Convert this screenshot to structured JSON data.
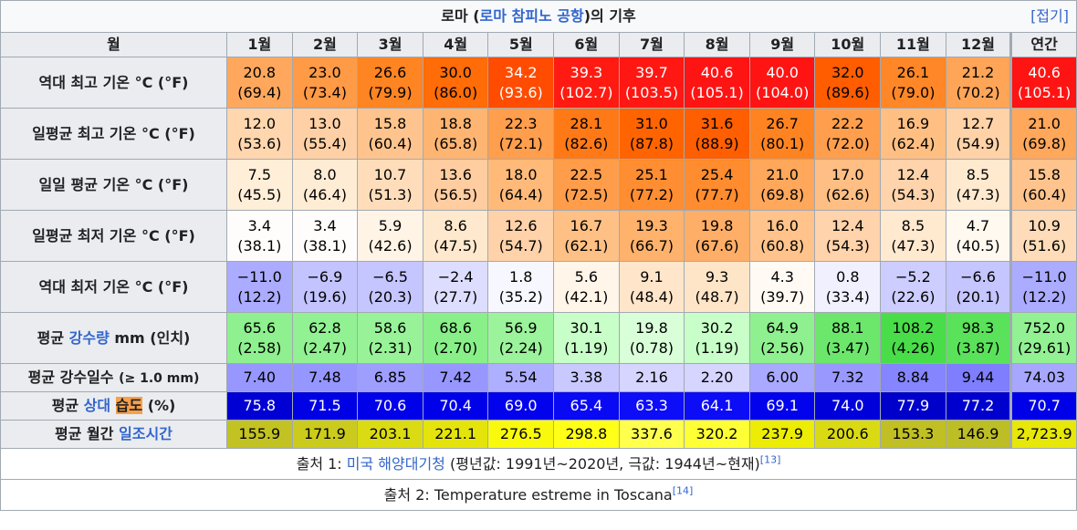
{
  "title": {
    "before": "로마 (",
    "link": "로마 참피노 공항",
    "after": ")의 기후",
    "toggle": "[접기]"
  },
  "header": [
    "월",
    "1월",
    "2월",
    "3월",
    "4월",
    "5월",
    "6월",
    "7월",
    "8월",
    "9월",
    "10월",
    "11월",
    "12월",
    "연간"
  ],
  "rows": [
    {
      "label": [
        {
          "text": "역대 최고 기온 °C (°F)"
        }
      ],
      "scale": "temp",
      "cells": [
        [
          "20.8",
          "(69.4)"
        ],
        [
          "23.0",
          "(73.4)"
        ],
        [
          "26.6",
          "(79.9)"
        ],
        [
          "30.0",
          "(86.0)"
        ],
        [
          "34.2",
          "(93.6)"
        ],
        [
          "39.3",
          "(102.7)"
        ],
        [
          "39.7",
          "(103.5)"
        ],
        [
          "40.6",
          "(105.1)"
        ],
        [
          "40.0",
          "(104.0)"
        ],
        [
          "32.0",
          "(89.6)"
        ],
        [
          "26.1",
          "(79.0)"
        ],
        [
          "21.2",
          "(70.2)"
        ],
        [
          "40.6",
          "(105.1)"
        ]
      ]
    },
    {
      "label": [
        {
          "text": "일평균 최고 기온 °C (°F)"
        }
      ],
      "scale": "temp",
      "cells": [
        [
          "12.0",
          "(53.6)"
        ],
        [
          "13.0",
          "(55.4)"
        ],
        [
          "15.8",
          "(60.4)"
        ],
        [
          "18.8",
          "(65.8)"
        ],
        [
          "22.3",
          "(72.1)"
        ],
        [
          "28.1",
          "(82.6)"
        ],
        [
          "31.0",
          "(87.8)"
        ],
        [
          "31.6",
          "(88.9)"
        ],
        [
          "26.7",
          "(80.1)"
        ],
        [
          "22.2",
          "(72.0)"
        ],
        [
          "16.9",
          "(62.4)"
        ],
        [
          "12.7",
          "(54.9)"
        ],
        [
          "21.0",
          "(69.8)"
        ]
      ]
    },
    {
      "label": [
        {
          "text": "일일 평균 기온 °C (°F)"
        }
      ],
      "scale": "temp",
      "cells": [
        [
          "7.5",
          "(45.5)"
        ],
        [
          "8.0",
          "(46.4)"
        ],
        [
          "10.7",
          "(51.3)"
        ],
        [
          "13.6",
          "(56.5)"
        ],
        [
          "18.0",
          "(64.4)"
        ],
        [
          "22.5",
          "(72.5)"
        ],
        [
          "25.1",
          "(77.2)"
        ],
        [
          "25.4",
          "(77.7)"
        ],
        [
          "21.0",
          "(69.8)"
        ],
        [
          "17.0",
          "(62.6)"
        ],
        [
          "12.4",
          "(54.3)"
        ],
        [
          "8.5",
          "(47.3)"
        ],
        [
          "15.8",
          "(60.4)"
        ]
      ]
    },
    {
      "label": [
        {
          "text": "일평균 최저 기온 °C (°F)"
        }
      ],
      "scale": "temp",
      "cells": [
        [
          "3.4",
          "(38.1)"
        ],
        [
          "3.4",
          "(38.1)"
        ],
        [
          "5.9",
          "(42.6)"
        ],
        [
          "8.6",
          "(47.5)"
        ],
        [
          "12.6",
          "(54.7)"
        ],
        [
          "16.7",
          "(62.1)"
        ],
        [
          "19.3",
          "(66.7)"
        ],
        [
          "19.8",
          "(67.6)"
        ],
        [
          "16.0",
          "(60.8)"
        ],
        [
          "12.4",
          "(54.3)"
        ],
        [
          "8.5",
          "(47.3)"
        ],
        [
          "4.7",
          "(40.5)"
        ],
        [
          "10.9",
          "(51.6)"
        ]
      ]
    },
    {
      "label": [
        {
          "text": "역대 최저 기온 °C (°F)"
        }
      ],
      "scale": "temp",
      "cells": [
        [
          "−11.0",
          "(12.2)"
        ],
        [
          "−6.9",
          "(19.6)"
        ],
        [
          "−6.5",
          "(20.3)"
        ],
        [
          "−2.4",
          "(27.7)"
        ],
        [
          "1.8",
          "(35.2)"
        ],
        [
          "5.6",
          "(42.1)"
        ],
        [
          "9.1",
          "(48.4)"
        ],
        [
          "9.3",
          "(48.7)"
        ],
        [
          "4.3",
          "(39.7)"
        ],
        [
          "0.8",
          "(33.4)"
        ],
        [
          "−5.2",
          "(22.6)"
        ],
        [
          "−6.6",
          "(20.1)"
        ],
        [
          "−11.0",
          "(12.2)"
        ]
      ]
    },
    {
      "label": [
        {
          "text": "평균 "
        },
        {
          "text": "강수량",
          "style": "link"
        },
        {
          "text": " mm (인치)"
        }
      ],
      "scale": "precip",
      "cells": [
        [
          "65.6",
          "(2.58)"
        ],
        [
          "62.8",
          "(2.47)"
        ],
        [
          "58.6",
          "(2.31)"
        ],
        [
          "68.6",
          "(2.70)"
        ],
        [
          "56.9",
          "(2.24)"
        ],
        [
          "30.1",
          "(1.19)"
        ],
        [
          "19.8",
          "(0.78)"
        ],
        [
          "30.2",
          "(1.19)"
        ],
        [
          "64.9",
          "(2.56)"
        ],
        [
          "88.1",
          "(3.47)"
        ],
        [
          "108.2",
          "(4.26)"
        ],
        [
          "98.3",
          "(3.87)"
        ],
        [
          "752.0",
          "(29.61)"
        ]
      ]
    },
    {
      "label": [
        {
          "text": "평균 강수일수 "
        },
        {
          "text": "(≥ 1.0 mm)",
          "style": "small"
        }
      ],
      "scale": "days",
      "cells": [
        [
          "7.40"
        ],
        [
          "7.48"
        ],
        [
          "6.85"
        ],
        [
          "7.42"
        ],
        [
          "5.54"
        ],
        [
          "3.38"
        ],
        [
          "2.16"
        ],
        [
          "2.20"
        ],
        [
          "6.00"
        ],
        [
          "7.32"
        ],
        [
          "8.84"
        ],
        [
          "9.44"
        ],
        [
          "74.03"
        ]
      ]
    },
    {
      "label": [
        {
          "text": "평균 "
        },
        {
          "text": "상대",
          "style": "link"
        },
        {
          "text": " "
        },
        {
          "text": "습도",
          "style": "mark"
        },
        {
          "text": " (%)"
        }
      ],
      "scale": "humidity",
      "cells": [
        [
          "75.8"
        ],
        [
          "71.5"
        ],
        [
          "70.6"
        ],
        [
          "70.4"
        ],
        [
          "69.0"
        ],
        [
          "65.4"
        ],
        [
          "63.3"
        ],
        [
          "64.1"
        ],
        [
          "69.1"
        ],
        [
          "74.0"
        ],
        [
          "77.9"
        ],
        [
          "77.2"
        ],
        [
          "70.7"
        ]
      ]
    },
    {
      "label": [
        {
          "text": "평균 월간 "
        },
        {
          "text": "일조시간",
          "style": "link"
        }
      ],
      "scale": "sun",
      "cells": [
        [
          "155.9"
        ],
        [
          "171.9"
        ],
        [
          "203.1"
        ],
        [
          "221.1"
        ],
        [
          "276.5"
        ],
        [
          "298.8"
        ],
        [
          "337.6"
        ],
        [
          "320.2"
        ],
        [
          "237.9"
        ],
        [
          "200.6"
        ],
        [
          "153.3"
        ],
        [
          "146.9"
        ],
        [
          "2,723.9"
        ]
      ]
    }
  ],
  "sources": [
    [
      {
        "text": "출처 1: "
      },
      {
        "text": "미국 해양대기청",
        "style": "link"
      },
      {
        "text": " (평년값: 1991년~2020년, 극값: 1944년~현재)"
      },
      {
        "text": "[13]",
        "style": "sup"
      }
    ],
    [
      {
        "text": "출처 2: Temperature estreme in Toscana"
      },
      {
        "text": "[14]",
        "style": "sup"
      }
    ]
  ]
}
